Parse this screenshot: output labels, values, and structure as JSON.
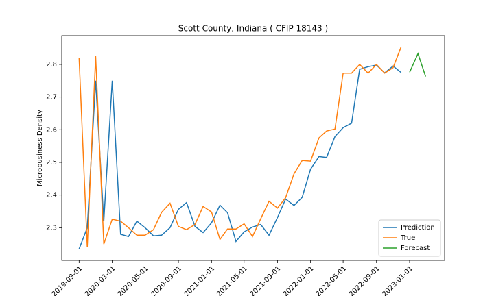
{
  "chart_data": {
    "type": "line",
    "title": "Scott County, Indiana ( CFIP 18143 )",
    "y_label": "Microbusiness Density",
    "xlim": [
      "2019-06-29",
      "2023-05-10"
    ],
    "xticks": [
      "2019-09-01",
      "2020-01-01",
      "2020-05-01",
      "2020-09-01",
      "2021-01-01",
      "2021-05-01",
      "2021-09-01",
      "2022-01-01",
      "2022-05-01",
      "2022-09-01",
      "2023-01-01"
    ],
    "ylim": [
      2.2,
      2.888
    ],
    "yticks": [
      2.3,
      2.4,
      2.5,
      2.6,
      2.7,
      2.8
    ],
    "grid": false,
    "legend": "lower right",
    "series": [
      {
        "name": "Prediction",
        "color": "#1f77b4",
        "x": [
          "2019-09-01",
          "2019-10-01",
          "2019-11-01",
          "2019-12-01",
          "2020-01-01",
          "2020-02-01",
          "2020-03-01",
          "2020-04-01",
          "2020-05-01",
          "2020-06-01",
          "2020-07-01",
          "2020-08-01",
          "2020-09-01",
          "2020-10-01",
          "2020-11-01",
          "2020-12-01",
          "2021-01-01",
          "2021-02-01",
          "2021-03-01",
          "2021-04-01",
          "2021-05-01",
          "2021-06-01",
          "2021-07-01",
          "2021-08-01",
          "2021-09-01",
          "2021-10-01",
          "2021-11-01",
          "2021-12-01",
          "2022-01-01",
          "2022-02-01",
          "2022-03-01",
          "2022-04-01",
          "2022-05-01",
          "2022-06-01",
          "2022-07-01",
          "2022-08-01",
          "2022-09-01",
          "2022-10-01",
          "2022-11-01",
          "2022-12-01"
        ],
        "values": [
          2.235,
          2.3,
          2.75,
          2.32,
          2.75,
          2.28,
          2.273,
          2.32,
          2.3,
          2.275,
          2.277,
          2.3,
          2.356,
          2.377,
          2.304,
          2.285,
          2.315,
          2.369,
          2.346,
          2.258,
          2.287,
          2.302,
          2.31,
          2.277,
          2.331,
          2.388,
          2.368,
          2.393,
          2.479,
          2.518,
          2.515,
          2.579,
          2.606,
          2.62,
          2.785,
          2.793,
          2.798,
          2.774,
          2.795,
          2.775
        ]
      },
      {
        "name": "True",
        "color": "#ff7f0e",
        "x": [
          "2019-09-01",
          "2019-10-01",
          "2019-11-01",
          "2019-12-01",
          "2020-01-01",
          "2020-02-01",
          "2020-03-01",
          "2020-04-01",
          "2020-05-01",
          "2020-06-01",
          "2020-07-01",
          "2020-08-01",
          "2020-09-01",
          "2020-10-01",
          "2020-11-01",
          "2020-12-01",
          "2021-01-01",
          "2021-02-01",
          "2021-03-01",
          "2021-04-01",
          "2021-05-01",
          "2021-06-01",
          "2021-07-01",
          "2021-08-01",
          "2021-09-01",
          "2021-10-01",
          "2021-11-01",
          "2021-12-01",
          "2022-01-01",
          "2022-02-01",
          "2022-03-01",
          "2022-04-01",
          "2022-05-01",
          "2022-06-01",
          "2022-07-01",
          "2022-08-01",
          "2022-09-01",
          "2022-10-01",
          "2022-11-01",
          "2022-12-01"
        ],
        "values": [
          2.82,
          2.24,
          2.825,
          2.25,
          2.326,
          2.32,
          2.3,
          2.277,
          2.277,
          2.294,
          2.347,
          2.375,
          2.304,
          2.294,
          2.31,
          2.365,
          2.348,
          2.264,
          2.296,
          2.296,
          2.312,
          2.273,
          2.327,
          2.381,
          2.36,
          2.392,
          2.465,
          2.506,
          2.504,
          2.575,
          2.596,
          2.602,
          2.773,
          2.773,
          2.8,
          2.773,
          2.8,
          2.773,
          2.79,
          2.854
        ]
      },
      {
        "name": "Forecast",
        "color": "#2ca02c",
        "x": [
          "2023-01-01",
          "2023-02-01",
          "2023-03-01"
        ],
        "values": [
          2.776,
          2.833,
          2.763
        ]
      }
    ]
  }
}
